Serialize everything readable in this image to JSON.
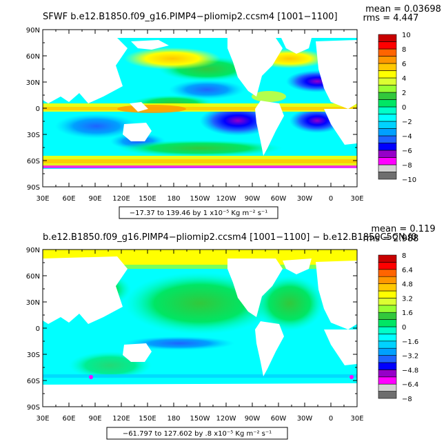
{
  "panels": [
    {
      "title": "SFWF  b.e12.B1850.f09_g16.PIMP4−pliomip2.ccsm4  [1001−1100]",
      "mean_label": "mean = 0.03698",
      "rms_label": "rms = 4.447",
      "range_label": "−17.37 to 139.46 by 1 x10⁻⁵ Kg m⁻² s⁻¹",
      "colorbar_labels": [
        "10",
        "8",
        "6",
        "4",
        "2",
        "0",
        "−2",
        "−4",
        "−6",
        "−8",
        "−10"
      ]
    },
    {
      "title": "b.e12.B1850.f09_g16.PIMP4−pliomip2.ccsm4  [1001−1100]  −  b.e12.B1850C5CN.f0",
      "mean_label": "mean = 0.119",
      "rms_label": "rms = 2.988",
      "range_label": "−61.797 to 127.602 by .8 x10⁻⁵ Kg m⁻² s⁻¹",
      "colorbar_labels": [
        "8",
        "6.4",
        "4.8",
        "3.2",
        "1.6",
        "0",
        "−1.6",
        "−3.2",
        "−4.8",
        "−6.4",
        "−8"
      ]
    }
  ],
  "axes": {
    "lat_labels": [
      "90N",
      "60N",
      "30N",
      "0",
      "30S",
      "60S",
      "90S"
    ],
    "lon_labels": [
      "30E",
      "60E",
      "90E",
      "120E",
      "150E",
      "180",
      "150W",
      "120W",
      "90W",
      "60W",
      "30W",
      "0",
      "30E"
    ]
  },
  "colors": {
    "palette": [
      "#6e6e6e",
      "#d2d2d2",
      "#ff00ff",
      "#9600c8",
      "#0000ff",
      "#1e64ff",
      "#00a0ff",
      "#00d2ff",
      "#00ffff",
      "#00ffc8",
      "#00e664",
      "#32c83c",
      "#96ff32",
      "#dcff32",
      "#ffff00",
      "#ffc800",
      "#ff9600",
      "#ff6400",
      "#ff0000",
      "#c80000"
    ],
    "land": "#ffffff"
  }
}
